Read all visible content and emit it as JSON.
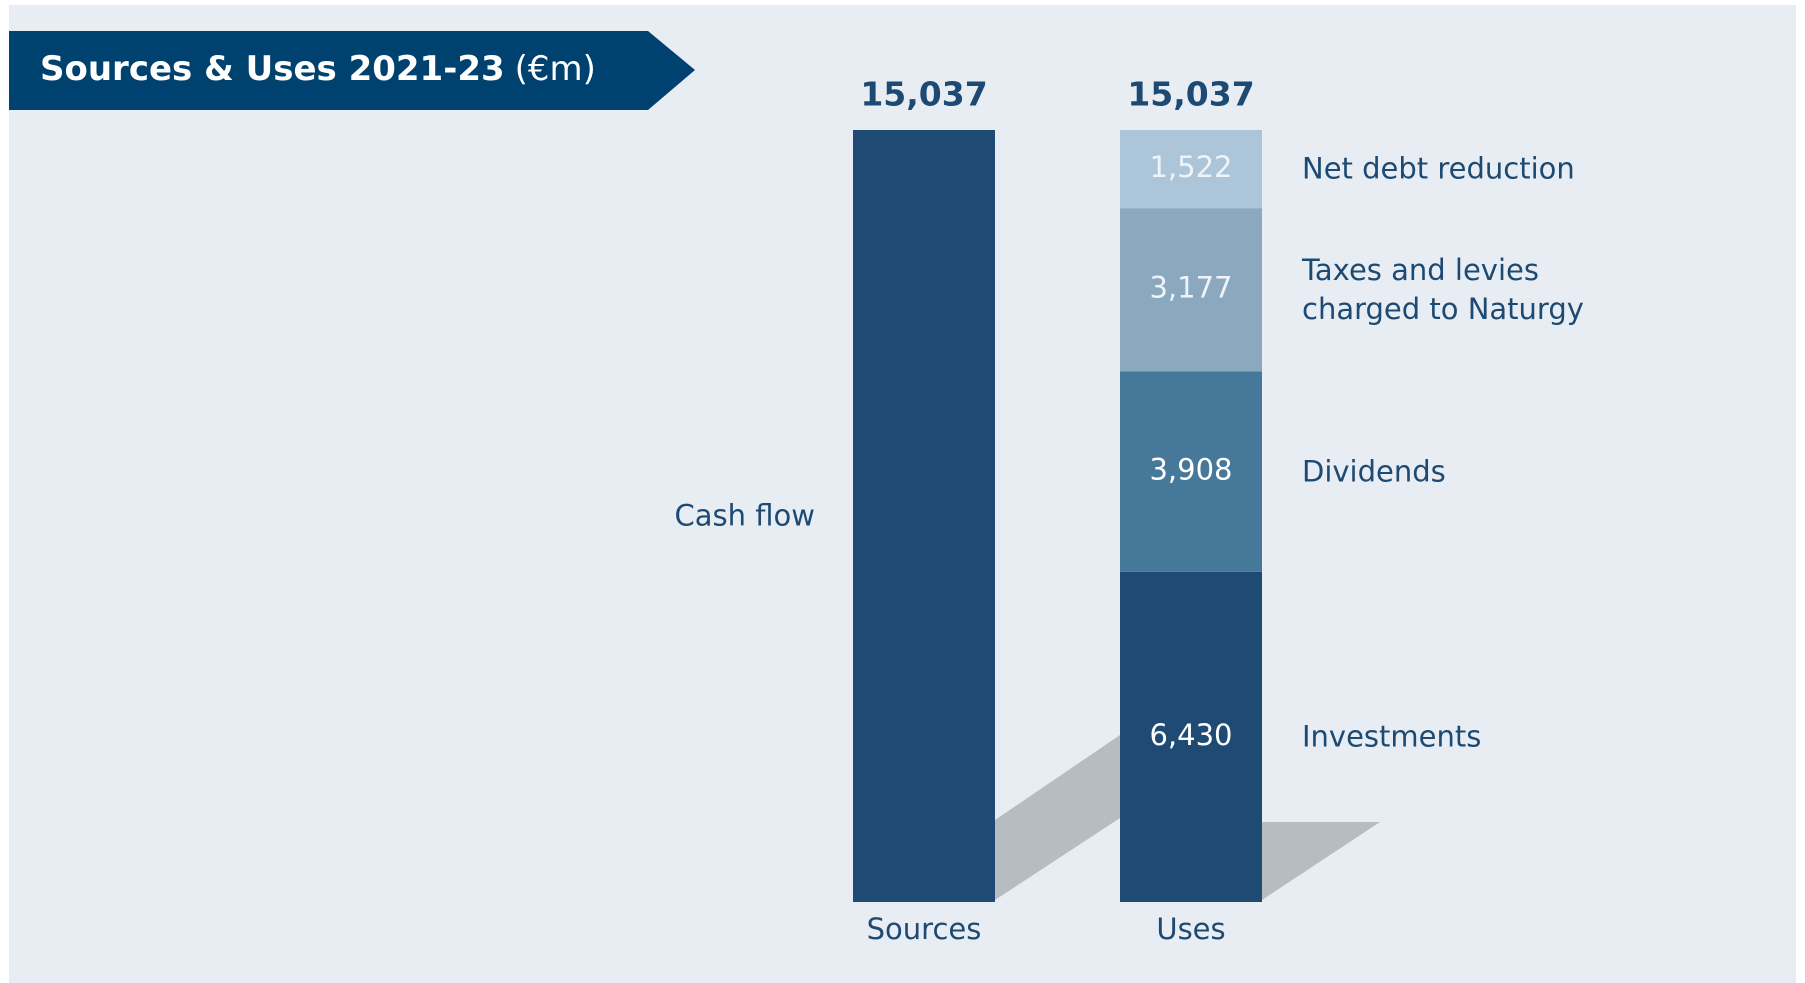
{
  "chart_data": {
    "type": "stacked-bar",
    "title": "Sources & Uses 2021-23",
    "unit": "(€m)",
    "categories": [
      "Sources",
      "Uses"
    ],
    "totals": {
      "values": [
        15037,
        15037
      ],
      "value_labels": [
        "15,037",
        "15,037"
      ]
    },
    "series": [
      {
        "name": "Cash flow",
        "color": "#1f4a73",
        "values": [
          15037,
          null
        ],
        "value_labels": [
          null,
          null
        ]
      },
      {
        "name": "Investments",
        "color": "#1f4a73",
        "values": [
          null,
          6430
        ],
        "value_labels": [
          null,
          "6,430"
        ]
      },
      {
        "name": "Dividends",
        "color": "#467899",
        "values": [
          null,
          3908
        ],
        "value_labels": [
          null,
          "3,908"
        ]
      },
      {
        "name": "Taxes and levies charged to Naturgy",
        "color": "#8aa9bf",
        "values": [
          null,
          3177
        ],
        "value_labels": [
          null,
          "3,177"
        ]
      },
      {
        "name": "Net debt reduction",
        "color": "#adc5d9",
        "values": [
          null,
          1522
        ],
        "value_labels": [
          null,
          "1,522"
        ]
      }
    ]
  }
}
